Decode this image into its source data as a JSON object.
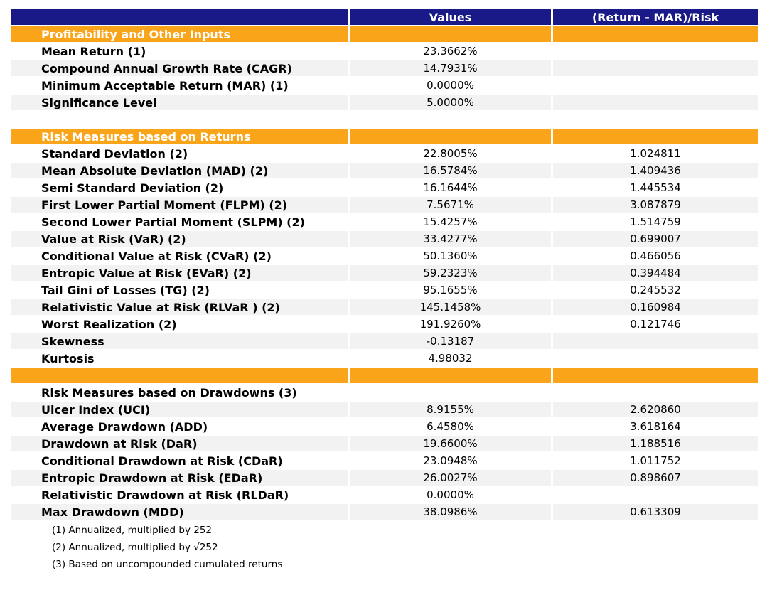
{
  "colors": {
    "header_bg": "#191987",
    "header_text": "#FFFFFF",
    "section_bg": "#FAA519",
    "section_text": "#FFFFFF",
    "stripe_bg": "#F2F2F2",
    "body_text": "#000000"
  },
  "table": {
    "columns": [
      {
        "label": ""
      },
      {
        "label": "Values"
      },
      {
        "label": "(Return - MAR)/Risk"
      }
    ],
    "rows": [
      {
        "type": "section",
        "label": "Profitability and Other Inputs"
      },
      {
        "type": "data",
        "label": "Mean Return (1)",
        "value": "23.3662%",
        "ratio": "",
        "shade": false
      },
      {
        "type": "data",
        "label": "Compound Annual Growth Rate (CAGR)",
        "value": "14.7931%",
        "ratio": "",
        "shade": true
      },
      {
        "type": "data",
        "label": "Minimum Acceptable Return (MAR) (1)",
        "value": "0.0000%",
        "ratio": "",
        "shade": false
      },
      {
        "type": "data",
        "label": "Significance Level",
        "value": "5.0000%",
        "ratio": "",
        "shade": true
      },
      {
        "type": "spacer",
        "label": ""
      },
      {
        "type": "section",
        "label": "Risk Measures based on Returns"
      },
      {
        "type": "data",
        "label": "Standard Deviation (2)",
        "value": "22.8005%",
        "ratio": "1.024811",
        "shade": false
      },
      {
        "type": "data",
        "label": "Mean Absolute Deviation (MAD) (2)",
        "value": "16.5784%",
        "ratio": "1.409436",
        "shade": true
      },
      {
        "type": "data",
        "label": "Semi Standard Deviation (2)",
        "value": "16.1644%",
        "ratio": "1.445534",
        "shade": false
      },
      {
        "type": "data",
        "label": "First Lower Partial Moment (FLPM) (2)",
        "value": "7.5671%",
        "ratio": "3.087879",
        "shade": true
      },
      {
        "type": "data",
        "label": "Second Lower Partial Moment (SLPM) (2)",
        "value": "15.4257%",
        "ratio": "1.514759",
        "shade": false
      },
      {
        "type": "data",
        "label": "Value at Risk (VaR) (2)",
        "value": "33.4277%",
        "ratio": "0.699007",
        "shade": true
      },
      {
        "type": "data",
        "label": "Conditional Value at Risk (CVaR) (2)",
        "value": "50.1360%",
        "ratio": "0.466056",
        "shade": false
      },
      {
        "type": "data",
        "label": "Entropic Value at Risk (EVaR) (2)",
        "value": "59.2323%",
        "ratio": "0.394484",
        "shade": true
      },
      {
        "type": "data",
        "label": "Tail Gini of Losses (TG) (2)",
        "value": "95.1655%",
        "ratio": "0.245532",
        "shade": false
      },
      {
        "type": "data",
        "label": "Relativistic Value at Risk (RLVaR ) (2)",
        "value": "145.1458%",
        "ratio": "0.160984",
        "shade": true
      },
      {
        "type": "data",
        "label": "Worst Realization (2)",
        "value": "191.9260%",
        "ratio": "0.121746",
        "shade": false
      },
      {
        "type": "data",
        "label": "Skewness",
        "value": "-0.13187",
        "ratio": "",
        "shade": true
      },
      {
        "type": "data",
        "label": "Kurtosis",
        "value": "4.98032",
        "ratio": "",
        "shade": false
      },
      {
        "type": "section",
        "label": ""
      },
      {
        "type": "plain",
        "label": "Risk Measures based on Drawdowns (3)"
      },
      {
        "type": "data",
        "label": "Ulcer Index (UCI)",
        "value": "8.9155%",
        "ratio": "2.620860",
        "shade": true
      },
      {
        "type": "data",
        "label": "Average Drawdown (ADD)",
        "value": "6.4580%",
        "ratio": "3.618164",
        "shade": false
      },
      {
        "type": "data",
        "label": "Drawdown at Risk (DaR)",
        "value": "19.6600%",
        "ratio": "1.188516",
        "shade": true
      },
      {
        "type": "data",
        "label": "Conditional Drawdown at Risk (CDaR)",
        "value": "23.0948%",
        "ratio": "1.011752",
        "shade": false
      },
      {
        "type": "data",
        "label": "Entropic Drawdown at Risk (EDaR)",
        "value": "26.0027%",
        "ratio": "0.898607",
        "shade": true
      },
      {
        "type": "data",
        "label": "Relativistic Drawdown at Risk (RLDaR)",
        "value": "0.0000%",
        "ratio": "",
        "shade": false
      },
      {
        "type": "data",
        "label": "Max Drawdown (MDD)",
        "value": "38.0986%",
        "ratio": "0.613309",
        "shade": true
      }
    ]
  },
  "footnotes": [
    "(1) Annualized, multiplied by 252",
    "(2) Annualized, multiplied by √252",
    "(3) Based on uncompounded cumulated returns"
  ]
}
